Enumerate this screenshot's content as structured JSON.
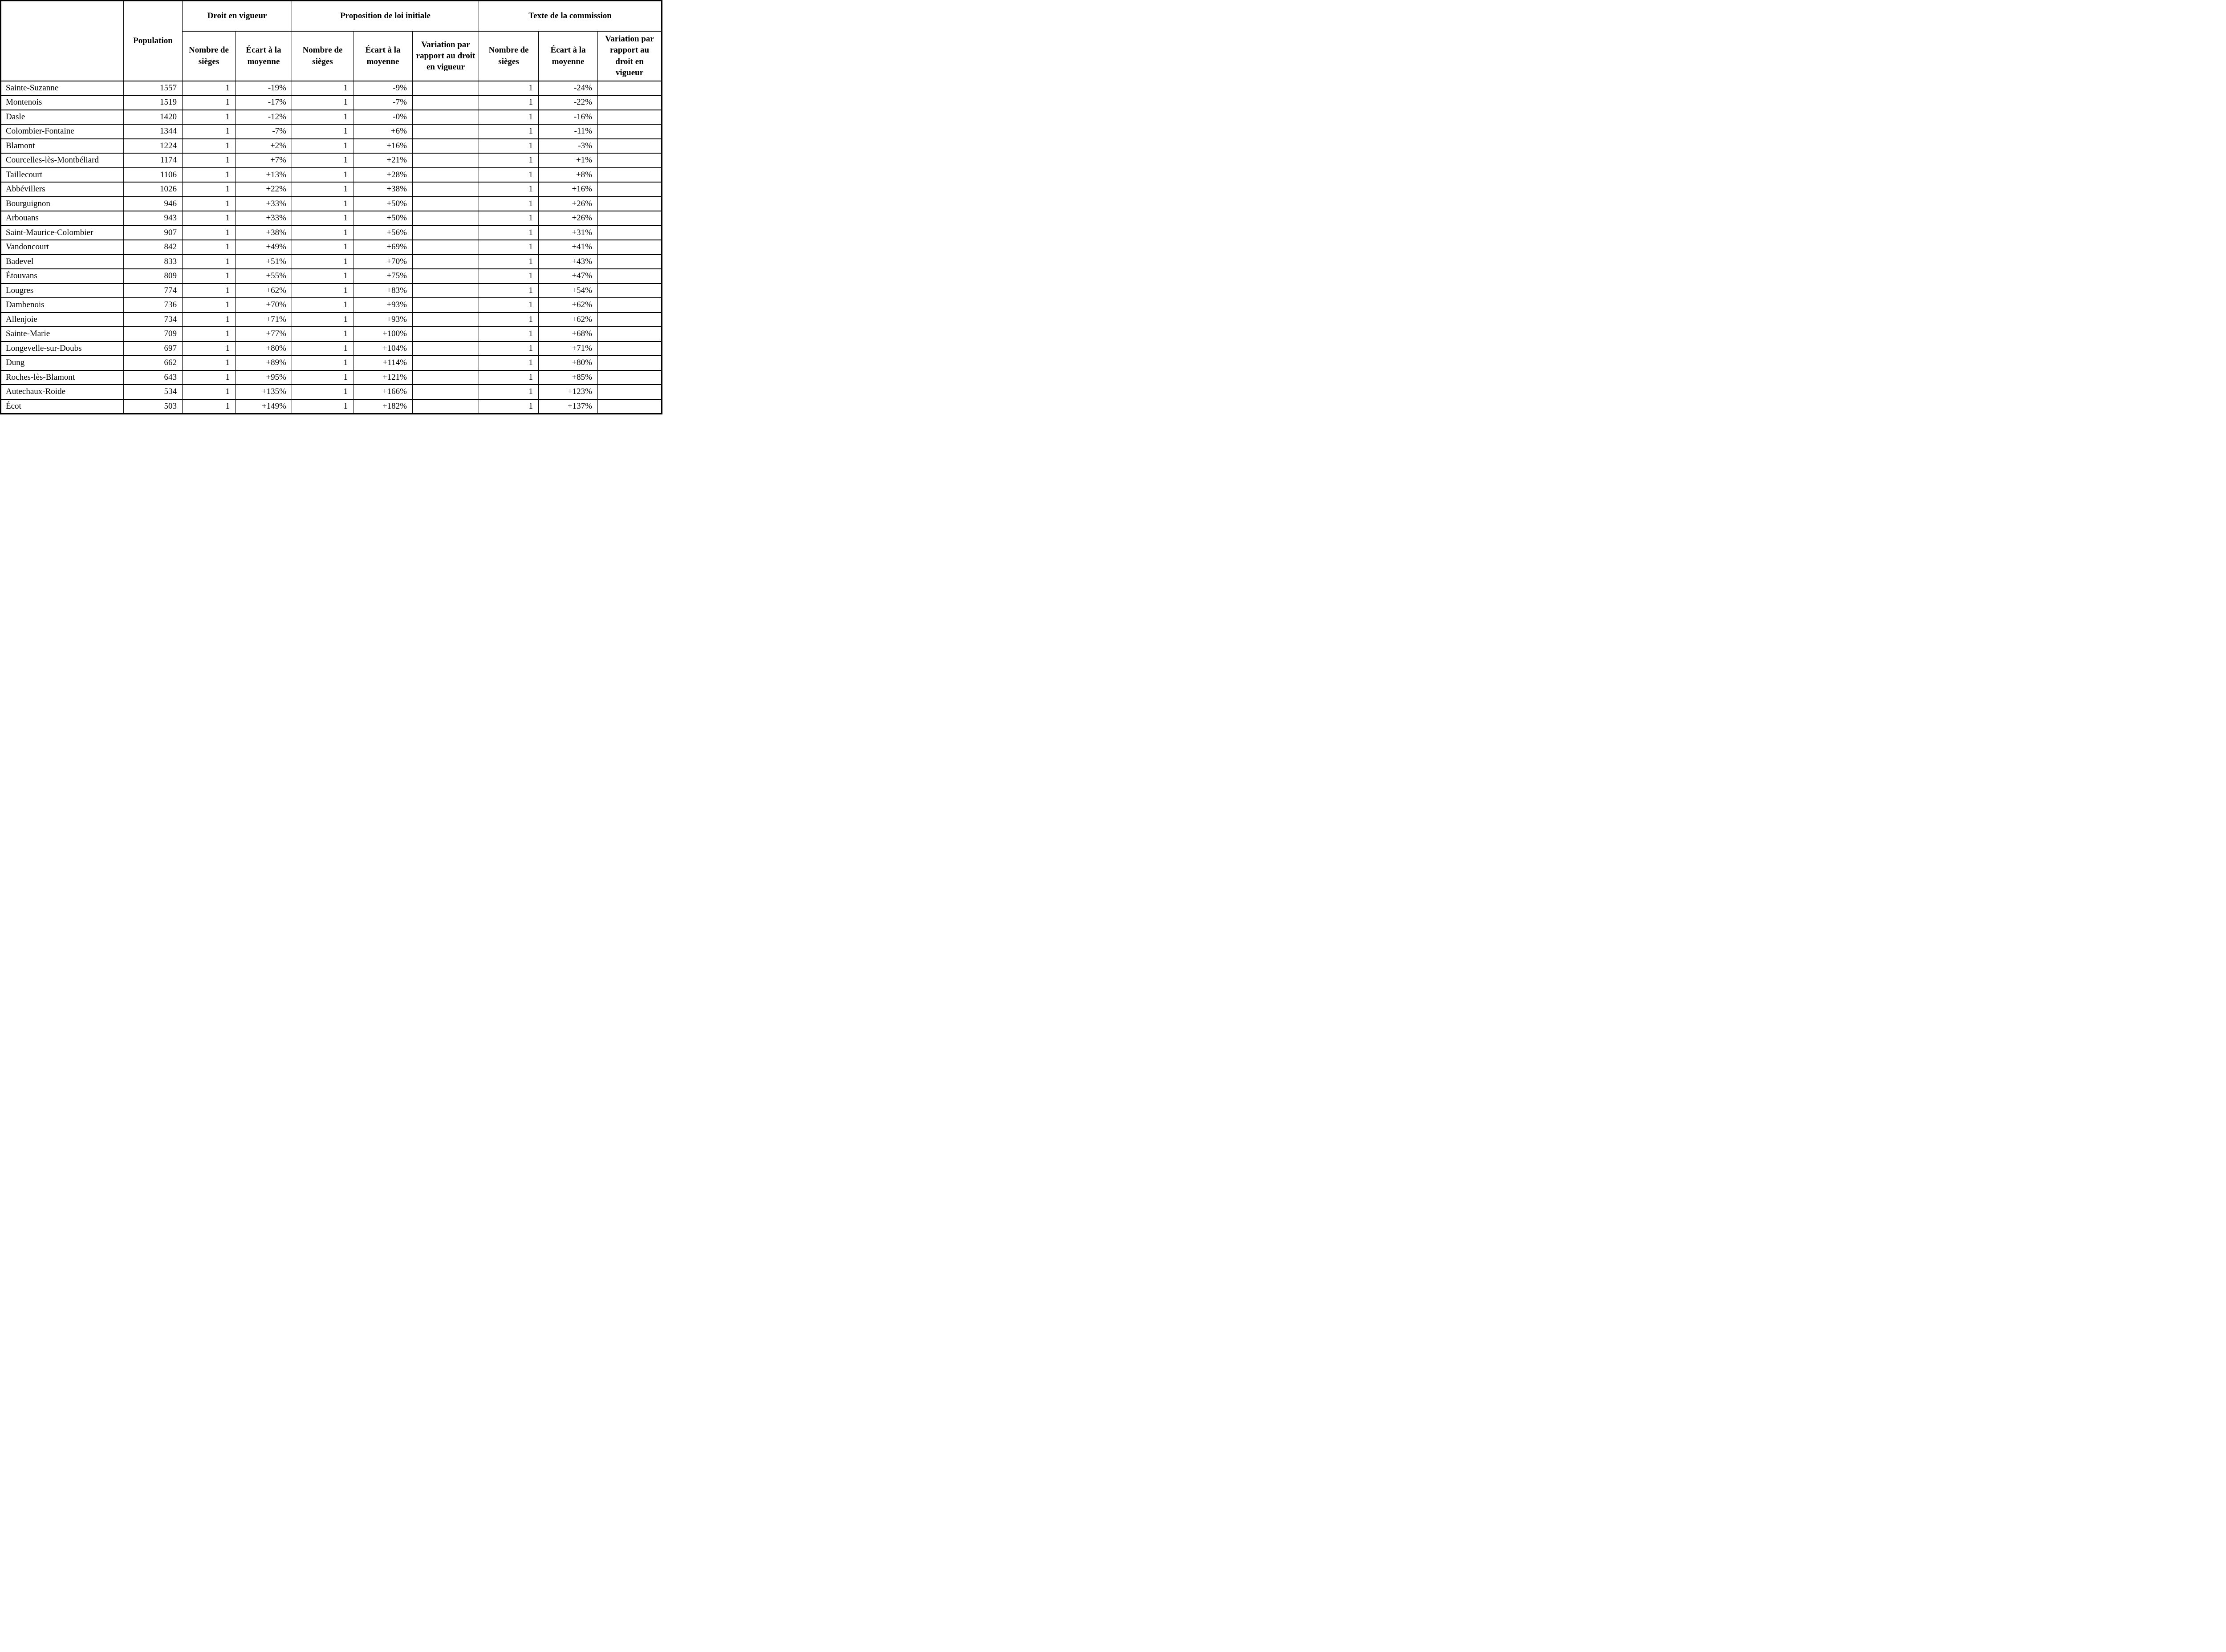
{
  "table": {
    "corner_label": "",
    "population_label": "Population",
    "groups": [
      {
        "label": "Droit en vigueur",
        "columns": [
          "Nombre de sièges",
          "Écart à la moyenne"
        ]
      },
      {
        "label": "Proposition de loi initiale",
        "columns": [
          "Nombre de sièges",
          "Écart à la moyenne",
          "Variation par rapport au droit en vigueur"
        ]
      },
      {
        "label": "Texte de la commission",
        "columns": [
          "Nombre de sièges",
          "Écart à la moyenne",
          "Variation par rapport au droit en vigueur"
        ]
      }
    ],
    "rows": [
      [
        "Sainte-Suzanne",
        "1557",
        "1",
        "-19%",
        "1",
        "-9%",
        "",
        "1",
        "-24%",
        ""
      ],
      [
        "Montenois",
        "1519",
        "1",
        "-17%",
        "1",
        "-7%",
        "",
        "1",
        "-22%",
        ""
      ],
      [
        "Dasle",
        "1420",
        "1",
        "-12%",
        "1",
        "-0%",
        "",
        "1",
        "-16%",
        ""
      ],
      [
        "Colombier-Fontaine",
        "1344",
        "1",
        "-7%",
        "1",
        "+6%",
        "",
        "1",
        "-11%",
        ""
      ],
      [
        "Blamont",
        "1224",
        "1",
        "+2%",
        "1",
        "+16%",
        "",
        "1",
        "-3%",
        ""
      ],
      [
        "Courcelles-lès-Montbéliard",
        "1174",
        "1",
        "+7%",
        "1",
        "+21%",
        "",
        "1",
        "+1%",
        ""
      ],
      [
        "Taillecourt",
        "1106",
        "1",
        "+13%",
        "1",
        "+28%",
        "",
        "1",
        "+8%",
        ""
      ],
      [
        "Abbévillers",
        "1026",
        "1",
        "+22%",
        "1",
        "+38%",
        "",
        "1",
        "+16%",
        ""
      ],
      [
        "Bourguignon",
        "946",
        "1",
        "+33%",
        "1",
        "+50%",
        "",
        "1",
        "+26%",
        ""
      ],
      [
        "Arbouans",
        "943",
        "1",
        "+33%",
        "1",
        "+50%",
        "",
        "1",
        "+26%",
        ""
      ],
      [
        "Saint-Maurice-Colombier",
        "907",
        "1",
        "+38%",
        "1",
        "+56%",
        "",
        "1",
        "+31%",
        ""
      ],
      [
        "Vandoncourt",
        "842",
        "1",
        "+49%",
        "1",
        "+69%",
        "",
        "1",
        "+41%",
        ""
      ],
      [
        "Badevel",
        "833",
        "1",
        "+51%",
        "1",
        "+70%",
        "",
        "1",
        "+43%",
        ""
      ],
      [
        "Étouvans",
        "809",
        "1",
        "+55%",
        "1",
        "+75%",
        "",
        "1",
        "+47%",
        ""
      ],
      [
        "Lougres",
        "774",
        "1",
        "+62%",
        "1",
        "+83%",
        "",
        "1",
        "+54%",
        ""
      ],
      [
        "Dambenois",
        "736",
        "1",
        "+70%",
        "1",
        "+93%",
        "",
        "1",
        "+62%",
        ""
      ],
      [
        "Allenjoie",
        "734",
        "1",
        "+71%",
        "1",
        "+93%",
        "",
        "1",
        "+62%",
        ""
      ],
      [
        "Sainte-Marie",
        "709",
        "1",
        "+77%",
        "1",
        "+100%",
        "",
        "1",
        "+68%",
        ""
      ],
      [
        "Longevelle-sur-Doubs",
        "697",
        "1",
        "+80%",
        "1",
        "+104%",
        "",
        "1",
        "+71%",
        ""
      ],
      [
        "Dung",
        "662",
        "1",
        "+89%",
        "1",
        "+114%",
        "",
        "1",
        "+80%",
        ""
      ],
      [
        "Roches-lès-Blamont",
        "643",
        "1",
        "+95%",
        "1",
        "+121%",
        "",
        "1",
        "+85%",
        ""
      ],
      [
        "Autechaux-Roide",
        "534",
        "1",
        "+135%",
        "1",
        "+166%",
        "",
        "1",
        "+123%",
        ""
      ],
      [
        "Écot",
        "503",
        "1",
        "+149%",
        "1",
        "+182%",
        "",
        "1",
        "+137%",
        ""
      ]
    ]
  },
  "colors": {
    "border": "#000000",
    "background": "#ffffff",
    "text": "#000000"
  }
}
